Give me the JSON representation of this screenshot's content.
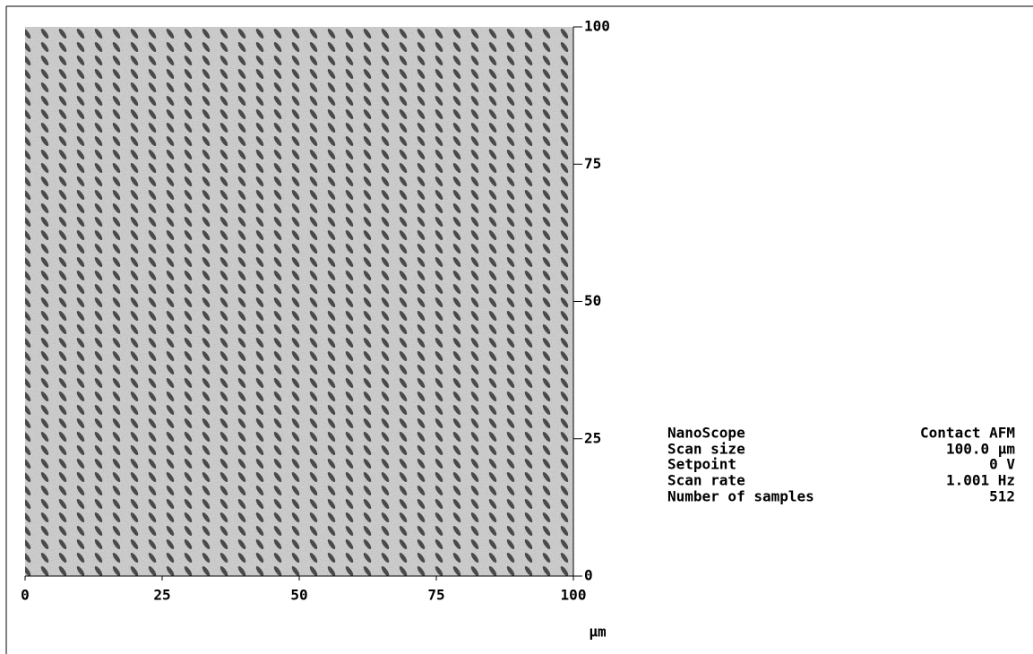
{
  "image": {
    "x_axis": {
      "lim": [
        0,
        100
      ],
      "ticks": [
        0,
        25,
        50,
        75,
        100
      ],
      "unit": "µm"
    },
    "y_axis": {
      "lim": [
        0,
        100
      ],
      "ticks": [
        0,
        25,
        50,
        75,
        100
      ]
    }
  },
  "info": {
    "rows": [
      [
        "NanoScope",
        "Contact AFM"
      ],
      [
        "Scan size",
        "100.0 µm"
      ],
      [
        "Setpoint",
        "0 V"
      ],
      [
        "Scan rate",
        "1.001 Hz"
      ],
      [
        "Number of samples",
        "512"
      ]
    ]
  }
}
